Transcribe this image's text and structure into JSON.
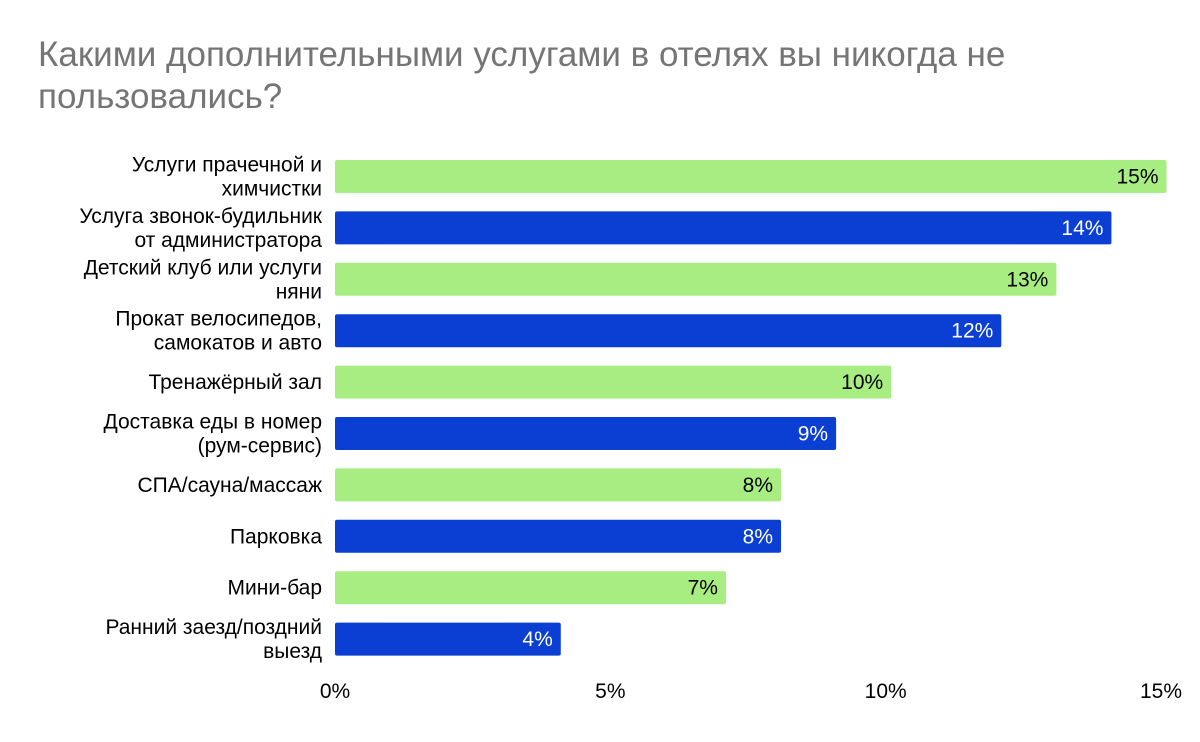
{
  "chart_data": {
    "type": "bar",
    "orientation": "horizontal",
    "title": "Какими дополнительными услугами в отелях вы никогда не пользовались?",
    "categories": [
      [
        "Услуги прачечной и",
        "химчистки"
      ],
      [
        "Услуга звонок-будильник",
        "от администратора"
      ],
      [
        "Детский клуб или услуги",
        "няни"
      ],
      [
        "Прокат велосипедов,",
        "самокатов и авто"
      ],
      [
        "Тренажёрный зал"
      ],
      [
        "Доставка еды в номер",
        "(рум-сервис)"
      ],
      [
        "СПА/сауна/массаж"
      ],
      [
        "Парковка"
      ],
      [
        "Мини-бар"
      ],
      [
        "Ранний заезд/поздний",
        "выезд"
      ]
    ],
    "values": [
      15.1,
      14.1,
      13.1,
      12.1,
      10.1,
      9.1,
      8.1,
      8.1,
      7.1,
      4.1
    ],
    "value_labels": [
      "15%",
      "14%",
      "13%",
      "12%",
      "10%",
      "9%",
      "8%",
      "8%",
      "7%",
      "4%"
    ],
    "xlim": [
      0,
      15
    ],
    "x_ticks": [
      0,
      5,
      10,
      15
    ],
    "x_tick_labels": [
      "0%",
      "5%",
      "10%",
      "15%"
    ],
    "grid": false,
    "legend": "none",
    "colors": {
      "green": "#a8ed82",
      "blue": "#0b3fd3",
      "title": "#757575",
      "label_on_green": "#000000",
      "label_on_blue": "#ffffff"
    }
  }
}
